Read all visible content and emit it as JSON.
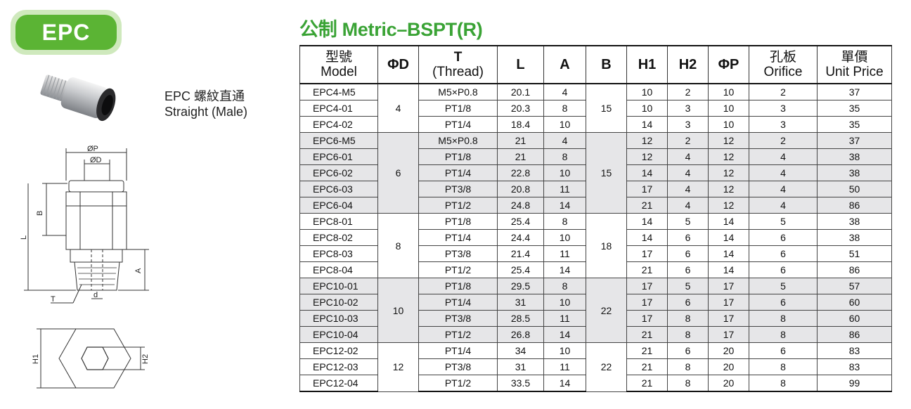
{
  "badge": {
    "label": "EPC"
  },
  "caption": {
    "line1": "EPC 螺紋直通",
    "line2": "Straight (Male)"
  },
  "title": "公制 Metric–BSPT(R)",
  "drawing_labels": {
    "p": "ØP",
    "d_outer": "ØD",
    "b": "B",
    "l": "L",
    "a": "A",
    "t": "T",
    "d": "d",
    "h1": "H1",
    "h2": "H2"
  },
  "table": {
    "headers": [
      {
        "cn": "型號",
        "en": "Model"
      },
      {
        "cn": "",
        "en": "ΦD"
      },
      {
        "cn": "T",
        "en": "(Thread)"
      },
      {
        "cn": "",
        "en": "L"
      },
      {
        "cn": "",
        "en": "A"
      },
      {
        "cn": "",
        "en": "B"
      },
      {
        "cn": "",
        "en": "H1"
      },
      {
        "cn": "",
        "en": "H2"
      },
      {
        "cn": "",
        "en": "ΦP"
      },
      {
        "cn": "孔板",
        "en": "Orifice"
      },
      {
        "cn": "單價",
        "en": "Unit Price"
      }
    ],
    "groups": [
      {
        "od": "4",
        "b": "15",
        "shade": false,
        "rows": [
          {
            "model": "EPC4-M5",
            "thread": "M5×P0.8",
            "l": "20.1",
            "a": "4",
            "h1": "10",
            "h2": "2",
            "p": "10",
            "orifice": "2",
            "price": "37"
          },
          {
            "model": "EPC4-01",
            "thread": "PT1/8",
            "l": "20.3",
            "a": "8",
            "h1": "10",
            "h2": "3",
            "p": "10",
            "orifice": "3",
            "price": "35"
          },
          {
            "model": "EPC4-02",
            "thread": "PT1/4",
            "l": "18.4",
            "a": "10",
            "h1": "14",
            "h2": "3",
            "p": "10",
            "orifice": "3",
            "price": "35"
          }
        ]
      },
      {
        "od": "6",
        "b": "15",
        "shade": true,
        "rows": [
          {
            "model": "EPC6-M5",
            "thread": "M5×P0.8",
            "l": "21",
            "a": "4",
            "h1": "12",
            "h2": "2",
            "p": "12",
            "orifice": "2",
            "price": "37"
          },
          {
            "model": "EPC6-01",
            "thread": "PT1/8",
            "l": "21",
            "a": "8",
            "h1": "12",
            "h2": "4",
            "p": "12",
            "orifice": "4",
            "price": "38"
          },
          {
            "model": "EPC6-02",
            "thread": "PT1/4",
            "l": "22.8",
            "a": "10",
            "h1": "14",
            "h2": "4",
            "p": "12",
            "orifice": "4",
            "price": "38"
          },
          {
            "model": "EPC6-03",
            "thread": "PT3/8",
            "l": "20.8",
            "a": "11",
            "h1": "17",
            "h2": "4",
            "p": "12",
            "orifice": "4",
            "price": "50"
          },
          {
            "model": "EPC6-04",
            "thread": "PT1/2",
            "l": "24.8",
            "a": "14",
            "h1": "21",
            "h2": "4",
            "p": "12",
            "orifice": "4",
            "price": "86"
          }
        ]
      },
      {
        "od": "8",
        "b": "18",
        "shade": false,
        "rows": [
          {
            "model": "EPC8-01",
            "thread": "PT1/8",
            "l": "25.4",
            "a": "8",
            "h1": "14",
            "h2": "5",
            "p": "14",
            "orifice": "5",
            "price": "38"
          },
          {
            "model": "EPC8-02",
            "thread": "PT1/4",
            "l": "24.4",
            "a": "10",
            "h1": "14",
            "h2": "6",
            "p": "14",
            "orifice": "6",
            "price": "38"
          },
          {
            "model": "EPC8-03",
            "thread": "PT3/8",
            "l": "21.4",
            "a": "11",
            "h1": "17",
            "h2": "6",
            "p": "14",
            "orifice": "6",
            "price": "51"
          },
          {
            "model": "EPC8-04",
            "thread": "PT1/2",
            "l": "25.4",
            "a": "14",
            "h1": "21",
            "h2": "6",
            "p": "14",
            "orifice": "6",
            "price": "86"
          }
        ]
      },
      {
        "od": "10",
        "b": "22",
        "shade": true,
        "rows": [
          {
            "model": "EPC10-01",
            "thread": "PT1/8",
            "l": "29.5",
            "a": "8",
            "h1": "17",
            "h2": "5",
            "p": "17",
            "orifice": "5",
            "price": "57"
          },
          {
            "model": "EPC10-02",
            "thread": "PT1/4",
            "l": "31",
            "a": "10",
            "h1": "17",
            "h2": "6",
            "p": "17",
            "orifice": "6",
            "price": "60"
          },
          {
            "model": "EPC10-03",
            "thread": "PT3/8",
            "l": "28.5",
            "a": "11",
            "h1": "17",
            "h2": "8",
            "p": "17",
            "orifice": "8",
            "price": "60"
          },
          {
            "model": "EPC10-04",
            "thread": "PT1/2",
            "l": "26.8",
            "a": "14",
            "h1": "21",
            "h2": "8",
            "p": "17",
            "orifice": "8",
            "price": "86"
          }
        ]
      },
      {
        "od": "12",
        "b": "22",
        "shade": false,
        "rows": [
          {
            "model": "EPC12-02",
            "thread": "PT1/4",
            "l": "34",
            "a": "10",
            "h1": "21",
            "h2": "6",
            "p": "20",
            "orifice": "6",
            "price": "83"
          },
          {
            "model": "EPC12-03",
            "thread": "PT3/8",
            "l": "31",
            "a": "11",
            "h1": "21",
            "h2": "8",
            "p": "20",
            "orifice": "8",
            "price": "83"
          },
          {
            "model": "EPC12-04",
            "thread": "PT1/2",
            "l": "33.5",
            "a": "14",
            "h1": "21",
            "h2": "8",
            "p": "20",
            "orifice": "8",
            "price": "99"
          }
        ]
      }
    ]
  }
}
